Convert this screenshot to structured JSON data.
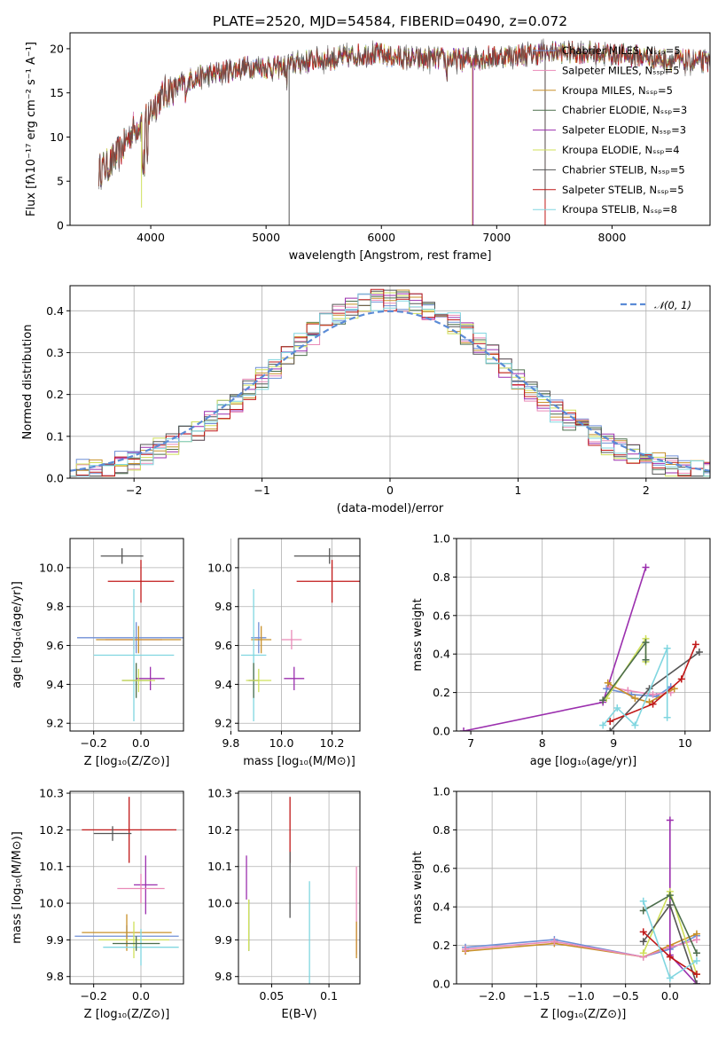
{
  "figure": {
    "title": "PLATE=2520, MJD=54584, FIBERID=0490, z=0.072"
  },
  "colors": {
    "Chabrier MILES": "#6f8fd6",
    "Salpeter MILES": "#e98ab8",
    "Kroupa MILES": "#c8902a",
    "Chabrier ELODIE": "#4c6e4c",
    "Salpeter ELODIE": "#9b2fae",
    "Kroupa ELODIE": "#cfe05a",
    "Chabrier STELIB": "#555555",
    "Salpeter STELIB": "#c01818",
    "Kroupa STELIB": "#80d6e0"
  },
  "chart_data": [
    {
      "id": "spectrum",
      "type": "line",
      "xlabel": "wavelength [Angstrom, rest frame]",
      "ylabel": "Flux [fλ10⁻¹⁷ erg cm⁻² s⁻¹ A⁻¹]",
      "xlim": [
        3300,
        8850
      ],
      "ylim": [
        0,
        21.8
      ],
      "xticks": [
        4000,
        5000,
        6000,
        7000,
        8000
      ],
      "yticks": [
        0,
        5,
        10,
        15,
        20
      ],
      "grid": false,
      "legend_position": "right",
      "continuum": {
        "x": [
          3550,
          3650,
          3750,
          3850,
          3950,
          4050,
          4150,
          4250,
          4350,
          4500,
          4700,
          4900,
          5100,
          5300,
          5500,
          5700,
          5900,
          6100,
          6300,
          6500,
          6700,
          6900,
          7100,
          7300,
          7500,
          7700,
          7900,
          8100,
          8300,
          8500,
          8700
        ],
        "y": [
          6.2,
          7.0,
          8.6,
          11.0,
          12.0,
          14.0,
          15.2,
          15.8,
          16.6,
          17.0,
          17.6,
          18.0,
          17.8,
          18.5,
          18.8,
          19.0,
          19.5,
          19.1,
          18.8,
          18.9,
          18.7,
          19.0,
          19.2,
          19.4,
          19.6,
          19.6,
          19.5,
          19.3,
          19.0,
          18.7,
          18.5
        ]
      },
      "series": [
        {
          "name": "Chabrier MILES, Nₛₛₚ=5",
          "color": "#6f8fd6"
        },
        {
          "name": "Salpeter MILES, Nₛₛₚ=5",
          "color": "#e98ab8"
        },
        {
          "name": "Kroupa MILES, Nₛₛₚ=5",
          "color": "#c8902a"
        },
        {
          "name": "Chabrier ELODIE, Nₛₛₚ=3",
          "color": "#4c6e4c"
        },
        {
          "name": "Salpeter ELODIE, Nₛₛₚ=3",
          "color": "#9b2fae"
        },
        {
          "name": "Kroupa ELODIE, Nₛₛₚ=4",
          "color": "#cfe05a"
        },
        {
          "name": "Chabrier STELIB, Nₛₛₚ=5",
          "color": "#555555"
        },
        {
          "name": "Salpeter STELIB, Nₛₛₚ=5",
          "color": "#c01818"
        },
        {
          "name": "Kroupa STELIB, Nₛₛₚ=8",
          "color": "#80d6e0"
        }
      ]
    },
    {
      "id": "residuals",
      "type": "area",
      "xlabel": "(data-model)/error",
      "ylabel": "Normed distribution",
      "xlim": [
        -2.5,
        2.5
      ],
      "ylim": [
        0,
        0.46
      ],
      "xticks": [
        -2,
        -1,
        0,
        1,
        2
      ],
      "yticks": [
        0.0,
        0.1,
        0.2,
        0.3,
        0.4
      ],
      "grid": true,
      "legend": "𝒩(0, 1)",
      "legend_position": "top-right",
      "reference": "normal pdf, mean 0, sigma 1 (dashed)"
    },
    {
      "id": "age-vs-Z",
      "type": "scatter",
      "xlabel": "Z [log₁₀(Z/Z⊙)]",
      "ylabel": "age  [log₁₀(age/yr)]",
      "xlim": [
        -0.3,
        0.18
      ],
      "ylim": [
        9.16,
        10.15
      ],
      "xticks": [
        -0.2,
        0.0
      ],
      "yticks": [
        9.2,
        9.4,
        9.6,
        9.8,
        10.0
      ],
      "grid": true,
      "errorbars": [
        {
          "color": "#555555",
          "x": -0.08,
          "y": 10.06,
          "xerr": 0.09,
          "yerr": 0.04
        },
        {
          "color": "#c01818",
          "x": 0.0,
          "y": 9.93,
          "xerr": 0.14,
          "yerr": 0.11
        },
        {
          "color": "#6f8fd6",
          "x": -0.02,
          "y": 9.64,
          "xerr": 0.25,
          "yerr": 0.08
        },
        {
          "color": "#e98ab8",
          "x": -0.03,
          "y": 9.63,
          "xerr": 0.12,
          "yerr": 0.05
        },
        {
          "color": "#c8902a",
          "x": -0.01,
          "y": 9.63,
          "xerr": 0.18,
          "yerr": 0.07
        },
        {
          "color": "#80d6e0",
          "x": -0.03,
          "y": 9.55,
          "xerr": 0.17,
          "yerr": 0.34
        },
        {
          "color": "#4c6e4c",
          "x": -0.02,
          "y": 9.42,
          "xerr": 0.06,
          "yerr": 0.09
        },
        {
          "color": "#9b2fae",
          "x": 0.04,
          "y": 9.43,
          "xerr": 0.06,
          "yerr": 0.06
        },
        {
          "color": "#cfe05a",
          "x": -0.01,
          "y": 9.42,
          "xerr": 0.07,
          "yerr": 0.06
        }
      ]
    },
    {
      "id": "age-vs-mass",
      "type": "scatter",
      "xlabel": "mass [log₁₀(M/M⊙)]",
      "ylabel": "",
      "xlim": [
        9.83,
        10.31
      ],
      "ylim": [
        9.16,
        10.15
      ],
      "xticks": [
        9.8,
        10.0,
        10.2
      ],
      "yticks": [
        9.2,
        9.4,
        9.6,
        9.8,
        10.0
      ],
      "grid": true,
      "errorbars": [
        {
          "color": "#555555",
          "x": 10.19,
          "y": 10.06,
          "xerr": 0.14,
          "yerr": 0.04
        },
        {
          "color": "#c01818",
          "x": 10.2,
          "y": 9.93,
          "xerr": 0.14,
          "yerr": 0.11
        },
        {
          "color": "#6f8fd6",
          "x": 9.91,
          "y": 9.64,
          "xerr": 0.03,
          "yerr": 0.08
        },
        {
          "color": "#e98ab8",
          "x": 10.04,
          "y": 9.63,
          "xerr": 0.04,
          "yerr": 0.05
        },
        {
          "color": "#c8902a",
          "x": 9.92,
          "y": 9.63,
          "xerr": 0.04,
          "yerr": 0.07
        },
        {
          "color": "#80d6e0",
          "x": 9.89,
          "y": 9.55,
          "xerr": 0.05,
          "yerr": 0.34
        },
        {
          "color": "#4c6e4c",
          "x": 9.89,
          "y": 9.42,
          "xerr": 0.02,
          "yerr": 0.09
        },
        {
          "color": "#9b2fae",
          "x": 10.05,
          "y": 9.43,
          "xerr": 0.04,
          "yerr": 0.06
        },
        {
          "color": "#cfe05a",
          "x": 9.91,
          "y": 9.42,
          "xerr": 0.05,
          "yerr": 0.06
        }
      ]
    },
    {
      "id": "weight-vs-age",
      "type": "line",
      "xlabel": "age  [log₁₀(age/yr)]",
      "ylabel": "mass weight",
      "xlim": [
        6.8,
        10.35
      ],
      "ylim": [
        0,
        1.0
      ],
      "xticks": [
        7,
        8,
        9,
        10
      ],
      "yticks": [
        0.0,
        0.2,
        0.4,
        0.6,
        0.8,
        1.0
      ],
      "grid": true,
      "series": [
        {
          "color": "#9b2fae",
          "x": [
            6.9,
            8.85,
            9.45
          ],
          "y": [
            0.0,
            0.15,
            0.85
          ]
        },
        {
          "color": "#6f8fd6",
          "x": [
            8.9,
            9.25,
            9.6,
            9.8
          ],
          "y": [
            0.22,
            0.19,
            0.18,
            0.23
          ]
        },
        {
          "color": "#e98ab8",
          "x": [
            8.95,
            9.2,
            9.55,
            9.8
          ],
          "y": [
            0.23,
            0.21,
            0.19,
            0.2
          ]
        },
        {
          "color": "#c8902a",
          "x": [
            8.92,
            9.3,
            9.5,
            9.85
          ],
          "y": [
            0.25,
            0.17,
            0.15,
            0.22
          ]
        },
        {
          "color": "#cfe05a",
          "x": [
            8.9,
            9.45,
            9.45
          ],
          "y": [
            0.17,
            0.48,
            0.36
          ]
        },
        {
          "color": "#4c6e4c",
          "x": [
            8.85,
            9.45,
            9.45
          ],
          "y": [
            0.16,
            0.46,
            0.37
          ]
        },
        {
          "color": "#555555",
          "x": [
            8.95,
            9.5,
            10.2
          ],
          "y": [
            0.0,
            0.22,
            0.41
          ]
        },
        {
          "color": "#c01818",
          "x": [
            8.95,
            9.55,
            9.95,
            10.15
          ],
          "y": [
            0.05,
            0.14,
            0.27,
            0.45
          ]
        },
        {
          "color": "#80d6e0",
          "x": [
            8.85,
            9.05,
            9.3,
            9.75,
            9.75
          ],
          "y": [
            0.03,
            0.12,
            0.03,
            0.43,
            0.07
          ]
        }
      ]
    },
    {
      "id": "mass-vs-Z",
      "type": "scatter",
      "xlabel": "Z [log₁₀(Z/Z⊙)]",
      "ylabel": "mass [log₁₀(M/M⊙)]",
      "xlim": [
        -0.3,
        0.18
      ],
      "ylim": [
        9.78,
        10.305
      ],
      "xticks": [
        -0.2,
        0.0
      ],
      "yticks": [
        9.8,
        9.9,
        10.0,
        10.1,
        10.2,
        10.3
      ],
      "grid": true,
      "errorbars": [
        {
          "color": "#c01818",
          "x": -0.05,
          "y": 10.2,
          "xerr": 0.2,
          "yerr": 0.09
        },
        {
          "color": "#555555",
          "x": -0.12,
          "y": 10.19,
          "xerr": 0.08,
          "yerr": 0.02
        },
        {
          "color": "#9b2fae",
          "x": 0.02,
          "y": 10.05,
          "xerr": 0.05,
          "yerr": 0.08
        },
        {
          "color": "#e98ab8",
          "x": 0.0,
          "y": 10.04,
          "xerr": 0.1,
          "yerr": 0.04
        },
        {
          "color": "#6f8fd6",
          "x": -0.06,
          "y": 9.91,
          "xerr": 0.22,
          "yerr": 0.03
        },
        {
          "color": "#c8902a",
          "x": -0.06,
          "y": 9.92,
          "xerr": 0.19,
          "yerr": 0.05
        },
        {
          "color": "#cfe05a",
          "x": -0.03,
          "y": 9.9,
          "xerr": 0.15,
          "yerr": 0.05
        },
        {
          "color": "#80d6e0",
          "x": 0.0,
          "y": 9.88,
          "xerr": 0.16,
          "yerr": 0.05
        },
        {
          "color": "#4c6e4c",
          "x": -0.02,
          "y": 9.89,
          "xerr": 0.1,
          "yerr": 0.02
        }
      ]
    },
    {
      "id": "mass-vs-EBV",
      "type": "scatter",
      "xlabel": "E(B-V)",
      "ylabel": "",
      "xlim": [
        0.021,
        0.127
      ],
      "ylim": [
        9.78,
        10.305
      ],
      "xticks": [
        0.05,
        0.1
      ],
      "yticks": [
        9.8,
        9.9,
        10.0,
        10.1,
        10.2,
        10.3
      ],
      "grid": true,
      "errorbars": [
        {
          "color": "#9b2fae",
          "x": 0.028,
          "y": 10.07,
          "xerr": 0,
          "yerr": 0.06
        },
        {
          "color": "#4c6e4c",
          "x": 0.03,
          "y": 9.94,
          "xerr": 0,
          "yerr": 0.07
        },
        {
          "color": "#cfe05a",
          "x": 0.03,
          "y": 9.94,
          "xerr": 0,
          "yerr": 0.07
        },
        {
          "color": "#c01818",
          "x": 0.066,
          "y": 10.2,
          "xerr": 0,
          "yerr": 0.09
        },
        {
          "color": "#555555",
          "x": 0.066,
          "y": 10.05,
          "xerr": 0,
          "yerr": 0.09
        },
        {
          "color": "#80d6e0",
          "x": 0.083,
          "y": 9.91,
          "xerr": 0,
          "yerr": 0.15
        },
        {
          "color": "#e98ab8",
          "x": 0.124,
          "y": 9.98,
          "xerr": 0,
          "yerr": 0.12
        },
        {
          "color": "#c8902a",
          "x": 0.124,
          "y": 9.9,
          "xerr": 0,
          "yerr": 0.05
        }
      ]
    },
    {
      "id": "weight-vs-Z",
      "type": "line",
      "xlabel": "Z [log₁₀(Z/Z⊙)]",
      "ylabel": "mass weight",
      "xlim": [
        -2.4,
        0.45
      ],
      "ylim": [
        0,
        1.0
      ],
      "xticks": [
        -2.0,
        -1.5,
        -1.0,
        -0.5,
        0.0
      ],
      "yticks": [
        0.0,
        0.2,
        0.4,
        0.6,
        0.8,
        1.0
      ],
      "grid": true,
      "series": [
        {
          "color": "#6f8fd6",
          "x": [
            -2.3,
            -1.3,
            -0.3,
            0.0,
            0.3
          ],
          "y": [
            0.19,
            0.23,
            0.14,
            0.18,
            0.25
          ]
        },
        {
          "color": "#c8902a",
          "x": [
            -2.3,
            -1.3,
            -0.3,
            0.0,
            0.3
          ],
          "y": [
            0.17,
            0.21,
            0.14,
            0.2,
            0.26
          ]
        },
        {
          "color": "#e98ab8",
          "x": [
            -2.3,
            -1.3,
            -0.3,
            0.0,
            0.3
          ],
          "y": [
            0.18,
            0.22,
            0.14,
            0.19,
            0.23
          ]
        },
        {
          "color": "#9b2fae",
          "x": [
            0.0,
            0.0,
            0.3
          ],
          "y": [
            0.85,
            0.15,
            0.0
          ]
        },
        {
          "color": "#cfe05a",
          "x": [
            -0.3,
            0.0,
            0.3
          ],
          "y": [
            0.16,
            0.48,
            0.05
          ]
        },
        {
          "color": "#4c6e4c",
          "x": [
            -0.3,
            0.0,
            0.3
          ],
          "y": [
            0.38,
            0.46,
            0.16
          ]
        },
        {
          "color": "#555555",
          "x": [
            -0.3,
            0.0,
            0.3
          ],
          "y": [
            0.22,
            0.41,
            0.0
          ]
        },
        {
          "color": "#c01818",
          "x": [
            -0.3,
            0.0,
            0.3
          ],
          "y": [
            0.27,
            0.14,
            0.05
          ]
        },
        {
          "color": "#80d6e0",
          "x": [
            -0.3,
            0.0,
            0.3
          ],
          "y": [
            0.43,
            0.03,
            0.12
          ]
        }
      ]
    }
  ]
}
